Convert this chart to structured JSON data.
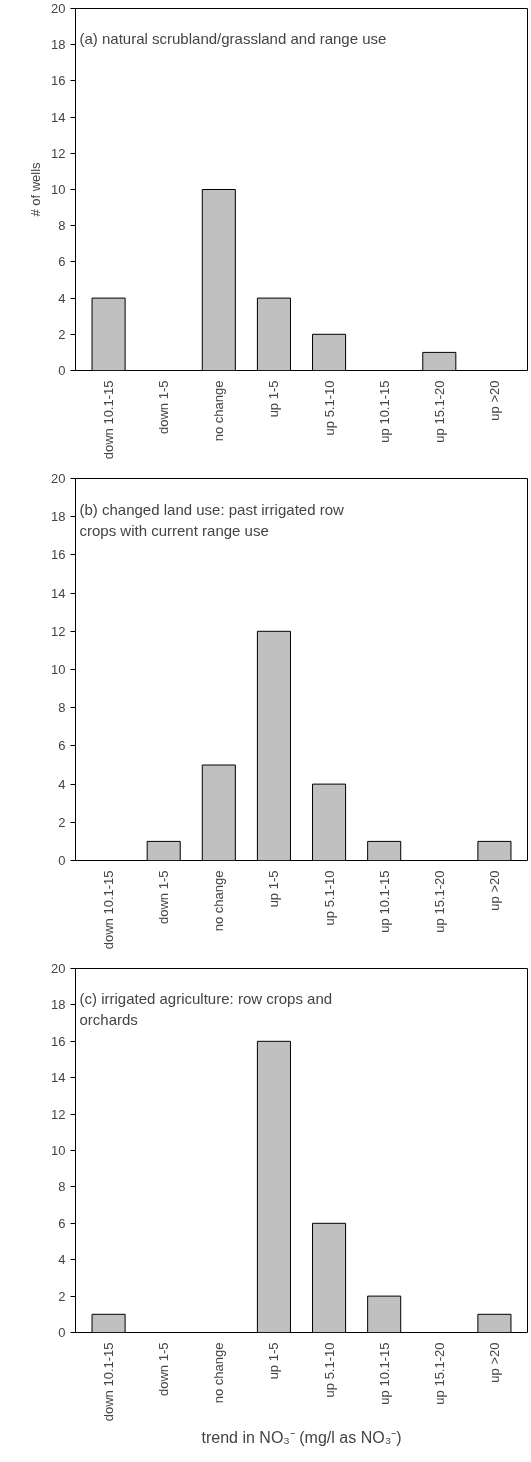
{
  "chart_data": [
    {
      "type": "bar",
      "ylabel": "# of wells",
      "annotations": [
        "(a) natural scrubland/grassland and range use"
      ],
      "categories": [
        "down 10.1-15",
        "down 1-5",
        "no change",
        "up 1-5",
        "up 5.1-10",
        "up 10.1-15",
        "up 15.1-20",
        "up >20"
      ],
      "values": [
        4,
        0,
        10,
        4,
        2,
        0,
        1,
        0
      ],
      "color": "#c0c0c0",
      "ylim": [
        0,
        20
      ],
      "yticks": [
        0,
        2,
        4,
        6,
        8,
        10,
        12,
        14,
        16,
        18,
        20
      ],
      "grid": false
    },
    {
      "type": "bar",
      "annotations": [
        "(b) changed land use: past irrigated row\n     crops with current range use"
      ],
      "categories": [
        "down 10.1-15",
        "down 1-5",
        "no change",
        "up 1-5",
        "up 5.1-10",
        "up 10.1-15",
        "up 15.1-20",
        "up >20"
      ],
      "values": [
        0,
        1,
        5,
        12,
        4,
        1,
        0,
        1
      ],
      "color": "#c0c0c0",
      "ylim": [
        0,
        20
      ],
      "yticks": [
        0,
        2,
        4,
        6,
        8,
        10,
        12,
        14,
        16,
        18,
        20
      ],
      "grid": false
    },
    {
      "type": "bar",
      "xlabel": "trend in NO₃⁻ (mg/l as NO₃⁻)",
      "annotations": [
        "(c) irrigated agriculture: row crops and\n     orchards"
      ],
      "categories": [
        "down 10.1-15",
        "down 1-5",
        "no change",
        "up 1-5",
        "up 5.1-10",
        "up 10.1-15",
        "up 15.1-20",
        "up >20"
      ],
      "values": [
        1,
        0,
        0,
        16,
        6,
        2,
        0,
        1
      ],
      "color": "#c0c0c0",
      "ylim": [
        0,
        20
      ],
      "yticks": [
        0,
        2,
        4,
        6,
        8,
        10,
        12,
        14,
        16,
        18,
        20
      ],
      "grid": false
    }
  ]
}
